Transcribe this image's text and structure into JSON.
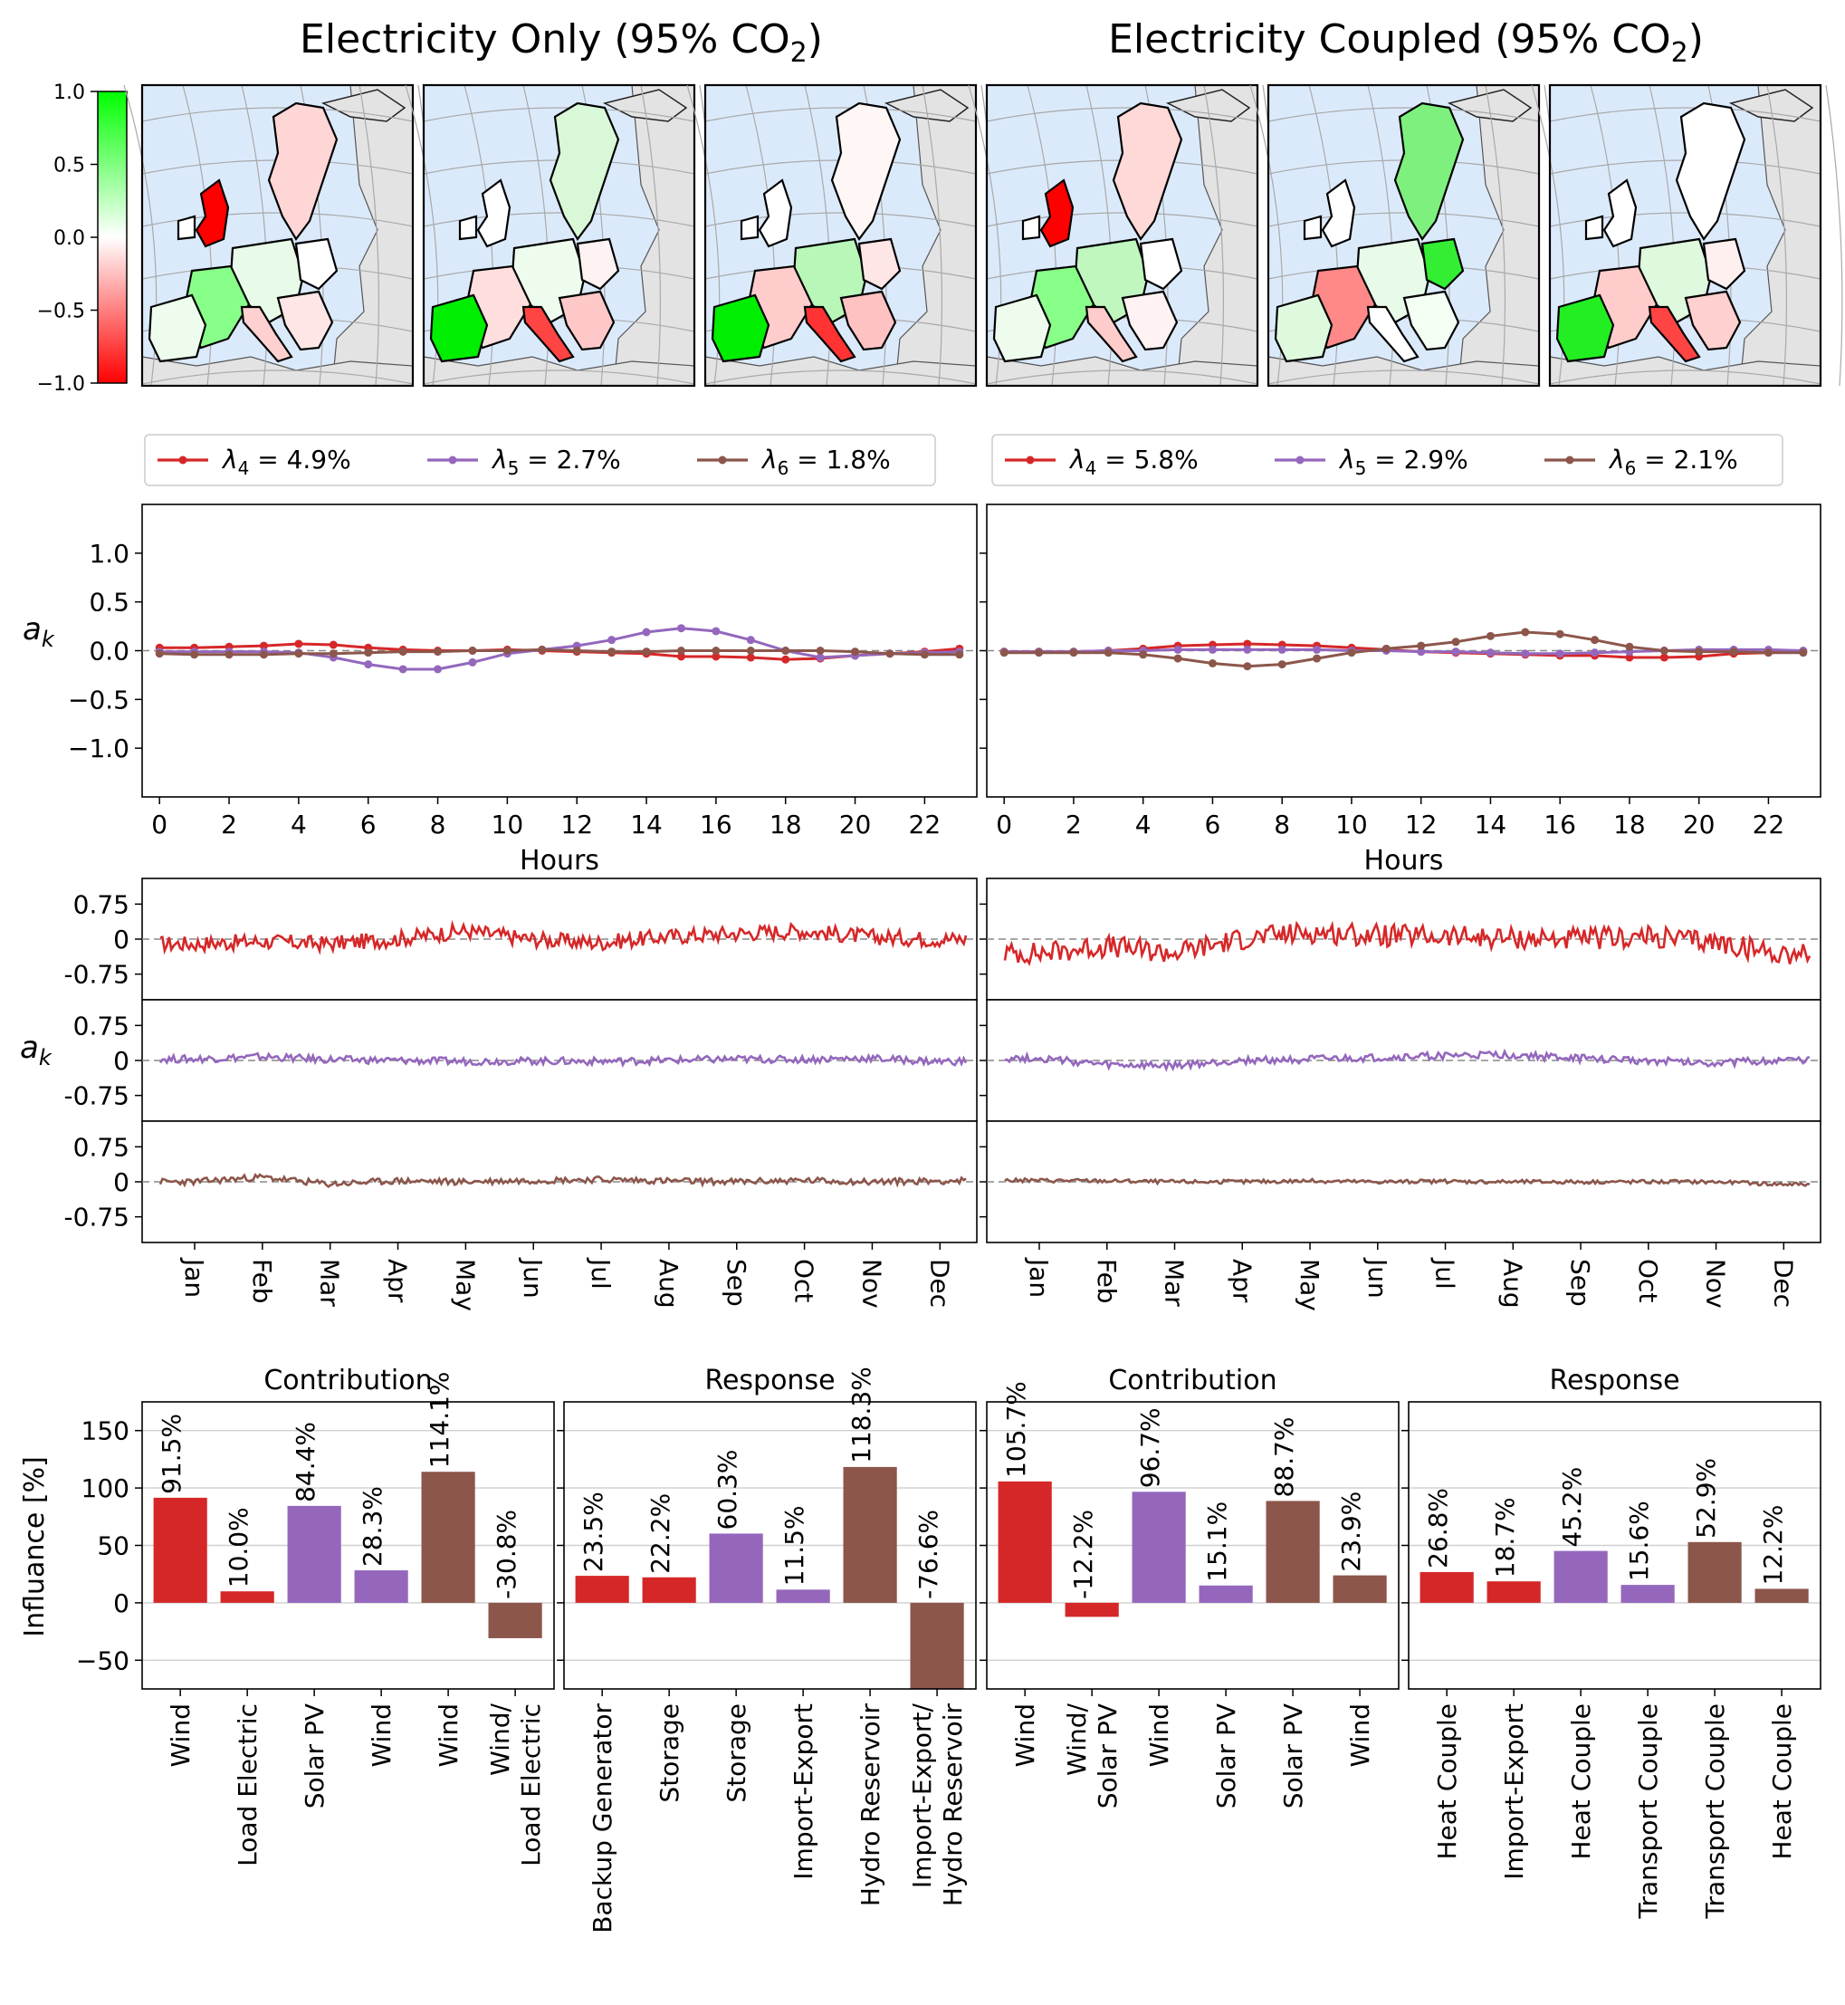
{
  "panels": [
    {
      "title": "Electricity Only (95% CO",
      "title_sub": "2",
      "title_end": ")",
      "legend": [
        {
          "sym": "λ",
          "sub": "4",
          "text": " = 4.9%",
          "color": "#d62728"
        },
        {
          "sym": "λ",
          "sub": "5",
          "text": " = 2.7%",
          "color": "#9467bd"
        },
        {
          "sym": "λ",
          "sub": "6",
          "text": " = 1.8%",
          "color": "#8c564b"
        }
      ]
    },
    {
      "title": "Electricity Coupled (95% CO",
      "title_sub": "2",
      "title_end": ")",
      "legend": [
        {
          "sym": "λ",
          "sub": "4",
          "text": " = 5.8%",
          "color": "#d62728"
        },
        {
          "sym": "λ",
          "sub": "5",
          "text": " = 2.9%",
          "color": "#9467bd"
        },
        {
          "sym": "λ",
          "sub": "6",
          "text": " = 2.1%",
          "color": "#8c564b"
        }
      ]
    }
  ],
  "colorbar": {
    "ticks": [
      "1.0",
      "0.5",
      "0.0",
      "−0.5",
      "−1.0"
    ],
    "colors": {
      "high": "#00ff00",
      "mid": "#ffffff",
      "low": "#ff0000"
    }
  },
  "map_colors": {
    "sea": "#dbeafb",
    "land": "#e3e3e3",
    "grid": "#a9a9a9",
    "maps": [
      {
        "uk": "#ff0000",
        "fr": "#88ff88",
        "ib": "#eefcee",
        "de": "#e8fbe8",
        "it": "#ffd0d0",
        "sc": "#ffd6d6",
        "pl": "#ffffff",
        "ba": "#ffe6e6"
      },
      {
        "uk": "#ffffff",
        "fr": "#ffdede",
        "ib": "#00ee00",
        "de": "#eefcee",
        "it": "#ff4444",
        "sc": "#d8f8d8",
        "pl": "#fff2f2",
        "ba": "#ffc8c8"
      },
      {
        "uk": "#ffffff",
        "fr": "#ffcccc",
        "ib": "#00ee00",
        "de": "#b8f7b8",
        "it": "#ff3333",
        "sc": "#fff6f6",
        "pl": "#ffe6e6",
        "ba": "#ffc2c2"
      },
      {
        "uk": "#ff0000",
        "fr": "#88ff88",
        "ib": "#eefcee",
        "de": "#bff7bf",
        "it": "#ffcccc",
        "sc": "#ffd8d8",
        "pl": "#ffffff",
        "ba": "#fff2f2"
      },
      {
        "uk": "#ffffff",
        "fr": "#ff8888",
        "ib": "#dff9df",
        "de": "#e8fbe8",
        "it": "#ffffff",
        "sc": "#7ef07e",
        "pl": "#33ee33",
        "ba": "#f4fff4"
      },
      {
        "uk": "#ffffff",
        "fr": "#ffcccc",
        "ib": "#22ee22",
        "de": "#dff9df",
        "it": "#ff4444",
        "sc": "#ffffff",
        "pl": "#fff0f0",
        "ba": "#ffd0d0"
      }
    ]
  },
  "daily": {
    "ylabel": "a",
    "ylabel_sub": "k",
    "xlabel": "Hours",
    "xticks": [
      "0",
      "2",
      "4",
      "6",
      "8",
      "10",
      "12",
      "14",
      "16",
      "18",
      "20",
      "22"
    ],
    "yticks": [
      "1.0",
      "0.5",
      "0.0",
      "−0.5",
      "−1.0"
    ]
  },
  "seasonal": {
    "ylabel": "a",
    "ylabel_sub": "k",
    "yticks": [
      "0.75",
      "0",
      "-0.75"
    ],
    "months": [
      "Jan",
      "Feb",
      "Mar",
      "Apr",
      "May",
      "Jun",
      "Jul",
      "Aug",
      "Sep",
      "Oct",
      "Nov",
      "Dec"
    ]
  },
  "bars": {
    "ylabel": "Influance [%]",
    "yticks": [
      "150",
      "100",
      "50",
      "0",
      "−50"
    ],
    "titles": [
      "Contribution",
      "Response",
      "Contribution",
      "Response"
    ]
  },
  "chart_data": [
    {
      "type": "line",
      "title": "",
      "xlabel": "Hours",
      "ylabel": "a_k",
      "xlim": [
        -0.5,
        23.5
      ],
      "ylim": [
        -1.5,
        1.5
      ],
      "x": [
        0,
        1,
        2,
        3,
        4,
        5,
        6,
        7,
        8,
        9,
        10,
        11,
        12,
        13,
        14,
        15,
        16,
        17,
        18,
        19,
        20,
        21,
        22,
        23
      ],
      "series": [
        {
          "name": "λ4 = 4.9%",
          "color": "#d62728",
          "values": [
            0.03,
            0.03,
            0.04,
            0.05,
            0.07,
            0.06,
            0.03,
            0.01,
            0.0,
            0.0,
            0.01,
            0.0,
            -0.01,
            -0.02,
            -0.03,
            -0.06,
            -0.06,
            -0.07,
            -0.09,
            -0.08,
            -0.05,
            -0.03,
            -0.01,
            0.02
          ]
        },
        {
          "name": "λ5 = 2.7%",
          "color": "#9467bd",
          "values": [
            -0.01,
            -0.01,
            -0.01,
            -0.01,
            -0.02,
            -0.07,
            -0.14,
            -0.19,
            -0.19,
            -0.12,
            -0.03,
            0.01,
            0.05,
            0.11,
            0.19,
            0.23,
            0.2,
            0.11,
            0.0,
            -0.07,
            -0.05,
            -0.03,
            -0.02,
            -0.01
          ]
        },
        {
          "name": "λ6 = 1.8%",
          "color": "#8c564b",
          "values": [
            -0.03,
            -0.04,
            -0.04,
            -0.04,
            -0.03,
            -0.03,
            -0.02,
            -0.01,
            -0.01,
            0.0,
            0.0,
            0.01,
            0.0,
            -0.01,
            -0.01,
            0.0,
            0.0,
            0.0,
            0.0,
            0.0,
            -0.01,
            -0.03,
            -0.04,
            -0.04
          ]
        }
      ]
    },
    {
      "type": "line",
      "title": "",
      "xlabel": "Hours",
      "ylabel": "",
      "xlim": [
        -0.5,
        23.5
      ],
      "ylim": [
        -1.5,
        1.5
      ],
      "x": [
        0,
        1,
        2,
        3,
        4,
        5,
        6,
        7,
        8,
        9,
        10,
        11,
        12,
        13,
        14,
        15,
        16,
        17,
        18,
        19,
        20,
        21,
        22,
        23
      ],
      "series": [
        {
          "name": "λ4 = 5.8%",
          "color": "#d62728",
          "values": [
            -0.01,
            -0.01,
            -0.01,
            0.0,
            0.02,
            0.05,
            0.06,
            0.07,
            0.06,
            0.05,
            0.03,
            0.01,
            -0.01,
            -0.02,
            -0.03,
            -0.04,
            -0.05,
            -0.05,
            -0.07,
            -0.07,
            -0.06,
            -0.03,
            -0.02,
            -0.01
          ]
        },
        {
          "name": "λ5 = 2.9%",
          "color": "#9467bd",
          "values": [
            -0.01,
            -0.01,
            -0.01,
            0.0,
            0.0,
            0.01,
            0.01,
            0.01,
            0.01,
            0.01,
            0.0,
            0.0,
            -0.01,
            -0.01,
            -0.02,
            -0.03,
            -0.03,
            -0.02,
            -0.01,
            0.0,
            0.01,
            0.01,
            0.01,
            0.0
          ]
        },
        {
          "name": "λ6 = 2.1%",
          "color": "#8c564b",
          "values": [
            -0.02,
            -0.02,
            -0.02,
            -0.02,
            -0.04,
            -0.08,
            -0.13,
            -0.16,
            -0.14,
            -0.08,
            -0.02,
            0.02,
            0.05,
            0.09,
            0.15,
            0.19,
            0.17,
            0.11,
            0.04,
            0.0,
            -0.01,
            -0.01,
            -0.02,
            -0.02
          ]
        }
      ]
    },
    {
      "type": "line",
      "title": "",
      "xlabel": "",
      "ylabel": "a_k",
      "x_categories": [
        "Jan",
        "Feb",
        "Mar",
        "Apr",
        "May",
        "Jun",
        "Jul",
        "Aug",
        "Sep",
        "Oct",
        "Nov",
        "Dec"
      ],
      "ylim": [
        -1.3,
        1.3
      ],
      "series": [
        {
          "name": "λ4",
          "color": "#d62728",
          "values": [
            -0.1,
            -0.05,
            -0.1,
            0.0,
            0.18,
            0.0,
            -0.08,
            0.05,
            0.12,
            0.18,
            0.05,
            0.0
          ]
        },
        {
          "name": "λ5",
          "color": "#9467bd",
          "values": [
            0.03,
            0.08,
            0.02,
            0.0,
            -0.02,
            -0.01,
            -0.02,
            0.0,
            0.03,
            0.02,
            0.05,
            -0.02
          ]
        },
        {
          "name": "λ6",
          "color": "#8c564b",
          "values": [
            0.0,
            0.1,
            -0.05,
            0.02,
            0.0,
            0.03,
            0.05,
            0.02,
            0.0,
            0.03,
            0.0,
            0.02
          ]
        }
      ]
    },
    {
      "type": "line",
      "title": "",
      "xlabel": "",
      "ylabel": "",
      "x_categories": [
        "Jan",
        "Feb",
        "Mar",
        "Apr",
        "May",
        "Jun",
        "Jul",
        "Aug",
        "Sep",
        "Oct",
        "Nov",
        "Dec"
      ],
      "ylim": [
        -1.3,
        1.3
      ],
      "series": [
        {
          "name": "λ4",
          "color": "#d62728",
          "values": [
            -0.3,
            -0.15,
            -0.3,
            0.0,
            0.15,
            0.08,
            0.05,
            0.02,
            0.0,
            0.05,
            -0.05,
            -0.3
          ]
        },
        {
          "name": "λ5",
          "color": "#9467bd",
          "values": [
            0.05,
            -0.1,
            -0.12,
            0.0,
            0.02,
            0.05,
            0.1,
            0.12,
            0.05,
            0.0,
            -0.05,
            0.0
          ]
        },
        {
          "name": "λ6",
          "color": "#8c564b",
          "values": [
            0.03,
            0.02,
            0.0,
            0.0,
            0.02,
            0.0,
            0.01,
            0.0,
            0.0,
            0.0,
            0.0,
            -0.05
          ]
        }
      ]
    },
    {
      "type": "bar",
      "title": "Contribution",
      "ylabel": "Influance [%]",
      "ylim": [
        -75,
        175
      ],
      "categories": [
        "Wind",
        "Load Electric",
        "Solar PV",
        "Wind",
        "Wind",
        "Wind/\nLoad Electric"
      ],
      "values": [
        91.5,
        10.0,
        84.4,
        28.3,
        114.1,
        -30.8
      ],
      "labels": [
        "91.5%",
        "10.0%",
        "84.4%",
        "28.3%",
        "114.1%",
        "-30.8%"
      ],
      "colors": [
        "#d62728",
        "#d62728",
        "#9467bd",
        "#9467bd",
        "#8c564b",
        "#8c564b"
      ]
    },
    {
      "type": "bar",
      "title": "Response",
      "ylabel": "",
      "ylim": [
        -75,
        175
      ],
      "categories": [
        "Backup Generator",
        "Storage",
        "Storage",
        "Import-Export",
        "Hydro Reservoir",
        "Import-Export/\nHydro Reservoir"
      ],
      "values": [
        23.5,
        22.2,
        60.3,
        11.5,
        118.3,
        -76.6
      ],
      "labels": [
        "23.5%",
        "22.2%",
        "60.3%",
        "11.5%",
        "118.3%",
        "-76.6%"
      ],
      "colors": [
        "#d62728",
        "#d62728",
        "#9467bd",
        "#9467bd",
        "#8c564b",
        "#8c564b"
      ]
    },
    {
      "type": "bar",
      "title": "Contribution",
      "ylabel": "",
      "ylim": [
        -75,
        175
      ],
      "categories": [
        "Wind",
        "Wind/\nSolar PV",
        "Wind",
        "Solar PV",
        "Solar PV",
        "Wind"
      ],
      "values": [
        105.7,
        -12.2,
        96.7,
        15.1,
        88.7,
        23.9
      ],
      "labels": [
        "105.7%",
        "-12.2%",
        "96.7%",
        "15.1%",
        "88.7%",
        "23.9%"
      ],
      "colors": [
        "#d62728",
        "#d62728",
        "#9467bd",
        "#9467bd",
        "#8c564b",
        "#8c564b"
      ]
    },
    {
      "type": "bar",
      "title": "Response",
      "ylabel": "",
      "ylim": [
        -75,
        175
      ],
      "categories": [
        "Heat Couple",
        "Import-Export",
        "Heat Couple",
        "Transport Couple",
        "Transport Couple",
        "Heat Couple"
      ],
      "values": [
        26.8,
        18.7,
        45.2,
        15.6,
        52.9,
        12.2
      ],
      "labels": [
        "26.8%",
        "18.7%",
        "45.2%",
        "15.6%",
        "52.9%",
        "12.2%"
      ],
      "colors": [
        "#d62728",
        "#d62728",
        "#9467bd",
        "#9467bd",
        "#8c564b",
        "#8c564b"
      ]
    }
  ]
}
